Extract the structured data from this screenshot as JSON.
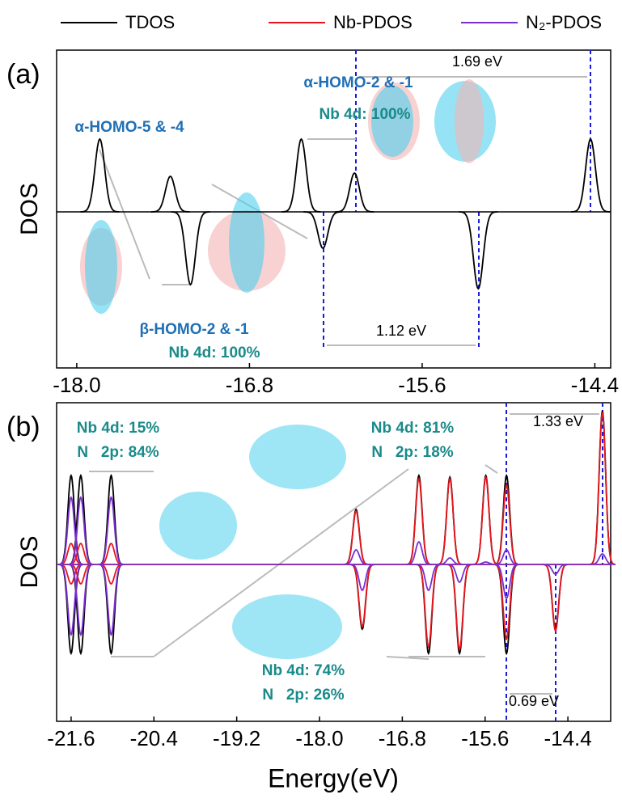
{
  "legend": [
    "TDOS",
    "Nb-PDOS",
    "N₂-PDOS"
  ],
  "chart_data": [
    {
      "type": "peaks",
      "panel_label": "(a)",
      "ylabel": "DOS",
      "x": [
        -17.84,
        -17.35,
        -16.44,
        -16.07,
        -14.43,
        -17.21,
        -16.29,
        -15.21
      ],
      "series": [
        {
          "color": "#000000",
          "values": [
            90,
            44,
            90,
            48,
            90,
            -90,
            -45,
            -95
          ]
        }
      ],
      "xlim": [
        -18.14,
        -14.29
      ],
      "ylim": [
        -193,
        200
      ],
      "xticks": [
        {
          "value": -18,
          "label": "-18.0"
        },
        -16.8,
        -15.6,
        -14.4
      ],
      "annotations": [
        "α-HOMO-2 & -1",
        "Nb 4d: 100%",
        "α-HOMO-5 & -4",
        "β-HOMO-2 & -1",
        "Nb 4d: 100%",
        "1.69 eV",
        "1.12 eV"
      ]
    },
    {
      "type": "peaks",
      "panel_label": "(b)",
      "ylabel": "DOS",
      "xlabel": "Energy(eV)",
      "x": [
        -21.6,
        -21.46,
        -21.02,
        -17.47,
        -16.56,
        -16.11,
        -15.59,
        -15.29,
        -13.9,
        -21.6,
        -21.46,
        -21.02,
        -17.38,
        -16.42,
        -15.97,
        -15.29,
        -14.58
      ],
      "series": [
        {
          "name": "TDOS",
          "color": "#000000",
          "values": [
            110,
            110,
            110,
            68,
            110,
            108,
            110,
            110,
            190,
            -110,
            -110,
            -110,
            -80,
            -110,
            -110,
            -110,
            -80
          ]
        },
        {
          "name": "Nb-PDOS",
          "color": "#e8141b",
          "values": [
            26,
            26,
            26,
            66,
            106,
            106,
            108,
            98,
            188,
            -24,
            -24,
            -24,
            -77,
            -102,
            -105,
            -92,
            -82
          ]
        },
        {
          "name": "N₂-PDOS",
          "color": "#7b2fd0",
          "values": [
            83,
            83,
            83,
            18,
            28,
            8,
            3,
            18,
            13,
            -87,
            -87,
            -87,
            -32,
            -32,
            -22,
            -42,
            -12
          ]
        }
      ],
      "xlim": [
        -21.81,
        -13.78
      ],
      "ylim": [
        -194,
        200
      ],
      "xticks": [
        -21.6,
        -20.4,
        -19.2,
        {
          "value": -18,
          "label": "-18.0"
        },
        -16.8,
        -15.6,
        -14.4
      ],
      "annotations": [
        "Nb 4d: 15%",
        "N   2p: 84%",
        "Nb 4d: 81%",
        "N   2p: 18%",
        "Nb 4d: 74%",
        "N   2p: 26%",
        "1.33 eV",
        "0.69 eV"
      ]
    }
  ]
}
